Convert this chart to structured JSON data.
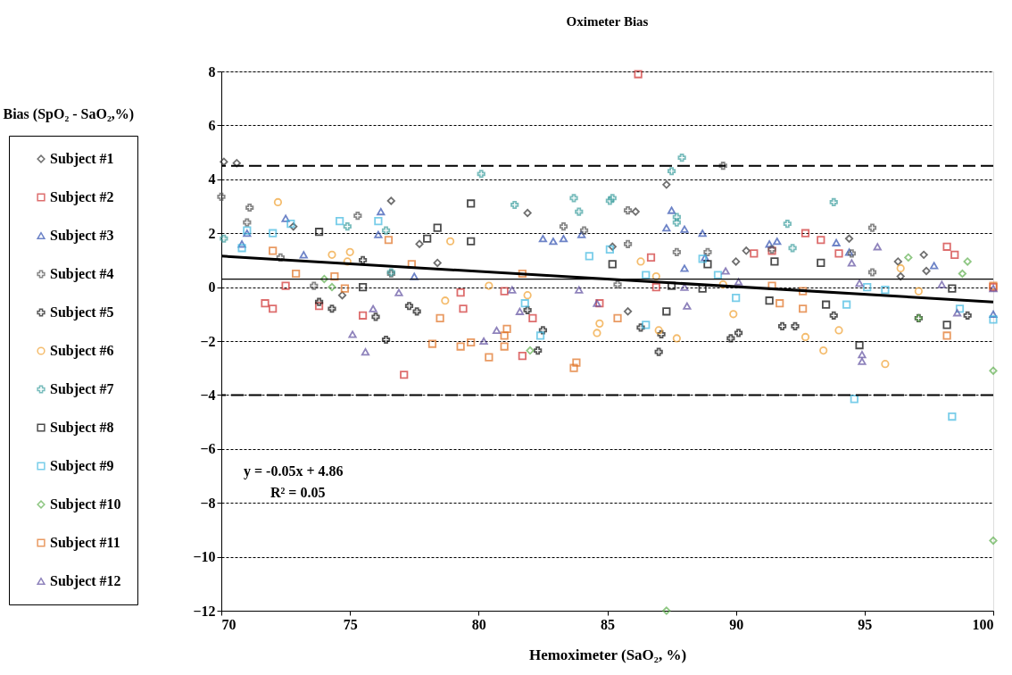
{
  "chart_data": {
    "type": "scatter",
    "title": "Oximeter Bias",
    "xlabel": "Hemoximeter (SaO₂, %)",
    "ylabel": "Bias (SpO₂ - SaO₂,%)",
    "xlim": [
      70,
      100
    ],
    "xticks": [
      70,
      75,
      80,
      85,
      90,
      95,
      100
    ],
    "ylim": [
      -12,
      8
    ],
    "yticks": [
      -12,
      -10,
      -8,
      -6,
      -4,
      -2,
      0,
      2,
      4,
      6,
      8
    ],
    "grid": "y",
    "legend": "left",
    "annotations": [
      "y = -0.05x + 4.86",
      "R² = 0.05"
    ],
    "ref_lines": [
      {
        "axis": "y",
        "value": 4.5,
        "line_style": "dashed"
      },
      {
        "axis": "y",
        "value": -4,
        "line_style": "dashed"
      },
      {
        "axis": "y",
        "value": 0.3,
        "line_style": "solid"
      }
    ],
    "series": [
      {
        "name": "Subject #1",
        "color": "#333333",
        "marker": "diamond",
        "x": [
          70.1,
          70.6,
          76.6,
          72.8,
          77.7,
          78.4,
          74.7,
          81.9,
          87.3,
          86.1,
          85.2,
          85.8,
          90.0,
          90.4,
          94.4,
          97.3,
          97.4,
          96.4,
          96.3
        ],
        "values": [
          4.65,
          4.6,
          3.2,
          2.25,
          1.6,
          0.9,
          -0.3,
          2.75,
          3.8,
          2.8,
          1.5,
          -0.9,
          0.95,
          1.35,
          1.8,
          1.2,
          0.6,
          0.4,
          0.95
        ]
      },
      {
        "name": "Subject #2",
        "color": "#d03030",
        "marker": "square",
        "x": [
          72.5,
          71.7,
          72.0,
          73.8,
          75.5,
          77.1,
          79.3,
          79.4,
          81.0,
          82.1,
          81.7,
          84.7,
          86.7,
          86.9,
          86.2,
          92.7,
          93.3,
          90.7,
          91.4,
          94.0,
          98.2,
          98.5,
          100
        ],
        "values": [
          0.05,
          -0.6,
          -0.8,
          -0.7,
          -1.05,
          -3.25,
          -0.2,
          -0.8,
          -0.15,
          -1.15,
          -2.55,
          -0.6,
          1.1,
          0.0,
          7.9,
          2.0,
          1.75,
          1.25,
          1.35,
          1.25,
          1.5,
          1.2,
          0.0
        ]
      },
      {
        "name": "Subject #3",
        "color": "#3050b0",
        "marker": "triangle",
        "x": [
          70.8,
          71.0,
          72.5,
          73.2,
          76.2,
          76.1,
          77.5,
          82.5,
          82.9,
          83.3,
          84.0,
          87.5,
          87.3,
          88.0,
          88.7,
          88.0,
          88.8,
          91.3,
          91.6,
          93.9,
          94.4,
          97.7,
          100
        ],
        "values": [
          1.6,
          2.0,
          2.55,
          1.2,
          2.8,
          1.95,
          0.4,
          1.8,
          1.7,
          1.8,
          1.95,
          2.85,
          2.2,
          2.15,
          2.0,
          0.7,
          1.1,
          1.6,
          1.7,
          1.65,
          1.3,
          0.8,
          -1.0
        ]
      },
      {
        "name": "Subject #4",
        "color": "#555555",
        "marker": "cross",
        "x": [
          70.0,
          71.1,
          71.0,
          75.3,
          72.3,
          76.6,
          73.6,
          83.3,
          84.1,
          85.8,
          85.8,
          87.7,
          88.9,
          89.5,
          85.4,
          95.3,
          95.3,
          94.5,
          91.4
        ],
        "values": [
          3.35,
          2.95,
          2.4,
          2.65,
          1.1,
          0.5,
          0.05,
          2.25,
          2.1,
          2.85,
          1.6,
          1.3,
          1.3,
          4.5,
          0.1,
          2.2,
          0.55,
          1.25,
          1.4
        ]
      },
      {
        "name": "Subject #5",
        "color": "#111111",
        "marker": "cross",
        "x": [
          73.8,
          74.3,
          75.5,
          76.0,
          76.4,
          77.3,
          77.6,
          81.9,
          82.5,
          82.3,
          86.3,
          87.1,
          87.0,
          89.8,
          90.1,
          91.8,
          92.3,
          93.8,
          97.1,
          99.0
        ],
        "values": [
          -0.55,
          -0.8,
          1.0,
          -1.1,
          -1.95,
          -0.7,
          -0.9,
          -0.85,
          -1.6,
          -2.35,
          -1.5,
          -1.75,
          -2.4,
          -1.9,
          -1.7,
          -1.45,
          -1.45,
          -1.05,
          -1.15,
          -1.05
        ]
      },
      {
        "name": "Subject #6",
        "color": "#f0a030",
        "marker": "circle",
        "x": [
          72.2,
          74.3,
          75.0,
          74.9,
          78.9,
          78.7,
          80.4,
          81.9,
          86.3,
          86.9,
          84.7,
          84.6,
          87.0,
          87.7,
          89.5,
          89.9,
          92.7,
          93.4,
          94.0,
          95.8,
          96.4,
          97.1
        ],
        "values": [
          3.15,
          1.2,
          1.3,
          0.95,
          1.7,
          -0.5,
          0.05,
          -0.3,
          0.95,
          0.4,
          -1.35,
          -1.7,
          -1.6,
          -1.9,
          0.1,
          -1.0,
          -1.85,
          -2.35,
          -1.6,
          -2.85,
          0.7,
          -0.15
        ]
      },
      {
        "name": "Subject #7",
        "color": "#40a0a0",
        "marker": "cross",
        "x": [
          70.1,
          74.9,
          76.4,
          76.6,
          80.1,
          81.4,
          83.7,
          83.9,
          85.1,
          85.2,
          87.5,
          87.9,
          87.7,
          87.7,
          93.8,
          92.0,
          92.2
        ],
        "values": [
          1.8,
          2.25,
          2.1,
          0.55,
          4.2,
          3.05,
          3.3,
          2.8,
          3.2,
          3.3,
          4.3,
          4.8,
          2.6,
          2.4,
          3.15,
          2.35,
          1.45
        ]
      },
      {
        "name": "Subject #8",
        "color": "#000000",
        "marker": "square",
        "x": [
          73.8,
          79.7,
          78.4,
          78.0,
          79.7,
          75.5,
          85.2,
          88.9,
          87.3,
          88.7,
          87.5,
          91.5,
          93.3,
          91.3,
          93.5,
          94.8,
          98.2,
          98.4
        ],
        "values": [
          2.05,
          3.1,
          2.2,
          1.8,
          1.7,
          0.0,
          0.85,
          0.85,
          -0.9,
          -0.05,
          0.05,
          0.95,
          0.9,
          -0.5,
          -0.65,
          -2.15,
          -1.4,
          -0.05
        ]
      },
      {
        "name": "Subject #9",
        "color": "#40b8e0",
        "marker": "square",
        "x": [
          70.8,
          71.0,
          72.0,
          74.6,
          76.1,
          72.7,
          84.3,
          85.1,
          86.5,
          88.7,
          89.3,
          90.0,
          81.8,
          82.4,
          86.5,
          94.3,
          95.1,
          95.8,
          94.6,
          98.4,
          98.7,
          100
        ],
        "values": [
          1.45,
          2.1,
          2.0,
          2.45,
          2.45,
          2.35,
          1.15,
          1.4,
          0.45,
          1.05,
          0.45,
          -0.4,
          -0.6,
          -1.8,
          -1.4,
          -0.65,
          0.0,
          -0.1,
          -4.15,
          -4.8,
          -0.8,
          -1.2
        ]
      },
      {
        "name": "Subject #10",
        "color": "#60b050",
        "marker": "diamond",
        "x": [
          74.0,
          74.3,
          82.0,
          96.7,
          99.0,
          98.8,
          97.1,
          100,
          100,
          87.3
        ],
        "values": [
          0.3,
          0.0,
          -2.35,
          1.1,
          0.95,
          0.5,
          -1.15,
          -3.1,
          -9.4,
          -12.0
        ]
      },
      {
        "name": "Subject #11",
        "color": "#e07020",
        "marker": "square",
        "x": [
          72.0,
          72.9,
          74.4,
          74.8,
          76.5,
          77.4,
          78.5,
          78.2,
          79.3,
          79.7,
          81.7,
          81.1,
          81.0,
          81.0,
          80.4,
          83.8,
          83.7,
          85.4,
          91.4,
          92.6,
          91.7,
          92.6,
          98.2,
          100
        ],
        "values": [
          1.35,
          0.5,
          0.4,
          -0.05,
          1.75,
          0.85,
          -1.15,
          -2.1,
          -2.2,
          -2.05,
          0.5,
          -1.55,
          -1.8,
          -2.2,
          -2.6,
          -2.8,
          -3.0,
          -1.15,
          0.05,
          -0.15,
          -0.6,
          -0.8,
          -1.8,
          0.05
        ]
      },
      {
        "name": "Subject #12",
        "color": "#6050a0",
        "marker": "triangle",
        "x": [
          75.1,
          75.6,
          75.9,
          76.9,
          80.2,
          80.7,
          81.3,
          81.6,
          83.9,
          84.6,
          88.1,
          88.0,
          89.6,
          90.1,
          95.5,
          94.5,
          94.8,
          94.9,
          94.9,
          98.0,
          98.6,
          100
        ],
        "values": [
          -1.75,
          -2.4,
          -0.8,
          -0.2,
          -2.0,
          -1.6,
          -0.1,
          -0.9,
          -0.1,
          -0.6,
          -0.7,
          0.0,
          0.6,
          0.2,
          1.5,
          0.9,
          0.15,
          -2.5,
          -2.75,
          0.1,
          -0.95,
          -0.05
        ]
      },
      {
        "type": "line",
        "color": "#000000",
        "line_style": "solid",
        "x": [
          70,
          100
        ],
        "values": [
          1.15,
          -0.55
        ]
      }
    ]
  }
}
